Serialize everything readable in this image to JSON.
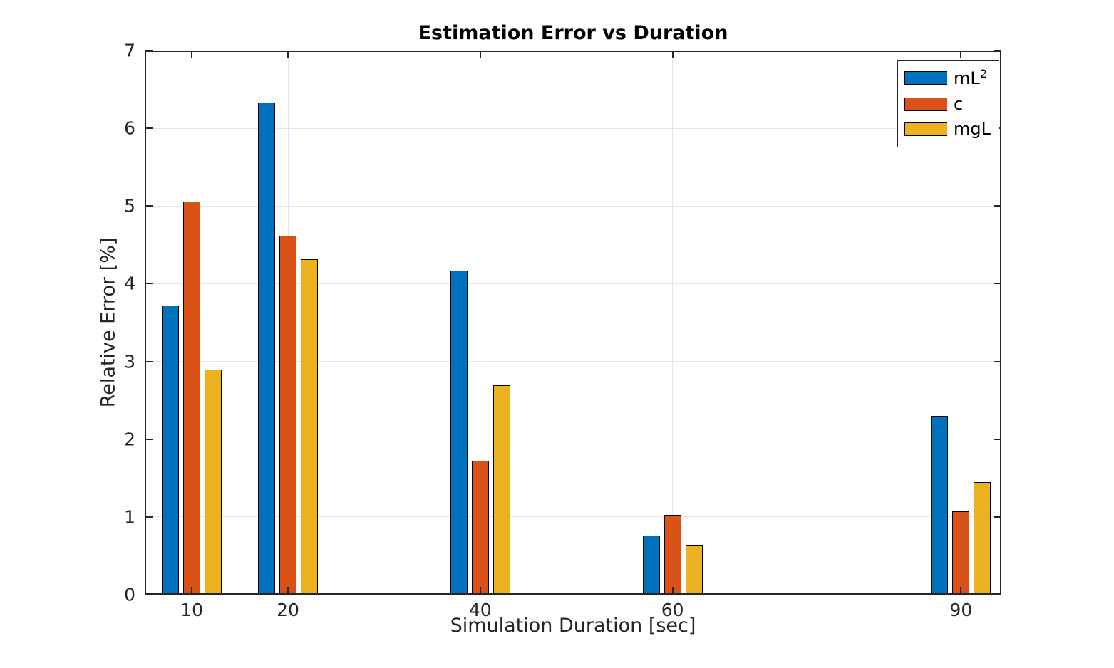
{
  "chart_data": {
    "type": "bar",
    "title": "Estimation Error vs Duration",
    "xlabel": "Simulation Duration [sec]",
    "ylabel": "Relative Error [%]",
    "categories": [
      10,
      20,
      40,
      60,
      90
    ],
    "series": [
      {
        "name": "mL",
        "name_sup": "2",
        "color": "#0072BD",
        "values": [
          3.72,
          6.33,
          4.17,
          0.76,
          2.3
        ]
      },
      {
        "name": "c",
        "name_sup": "",
        "color": "#D95319",
        "values": [
          5.06,
          4.62,
          1.72,
          1.03,
          1.07
        ]
      },
      {
        "name": "mgL",
        "name_sup": "",
        "color": "#EDB120",
        "values": [
          2.9,
          4.32,
          2.69,
          0.64,
          1.45
        ]
      }
    ],
    "xlim": [
      5.1,
      94.2
    ],
    "ylim": [
      0,
      7
    ],
    "xticks": [
      10,
      20,
      40,
      60,
      90
    ],
    "yticks": [
      0,
      1,
      2,
      3,
      4,
      5,
      6,
      7
    ],
    "grid": true,
    "legend_position": "top-right",
    "grid_color": "#e6e6e6",
    "axis_color": "#262626",
    "bar_edge_color": "#000000"
  }
}
